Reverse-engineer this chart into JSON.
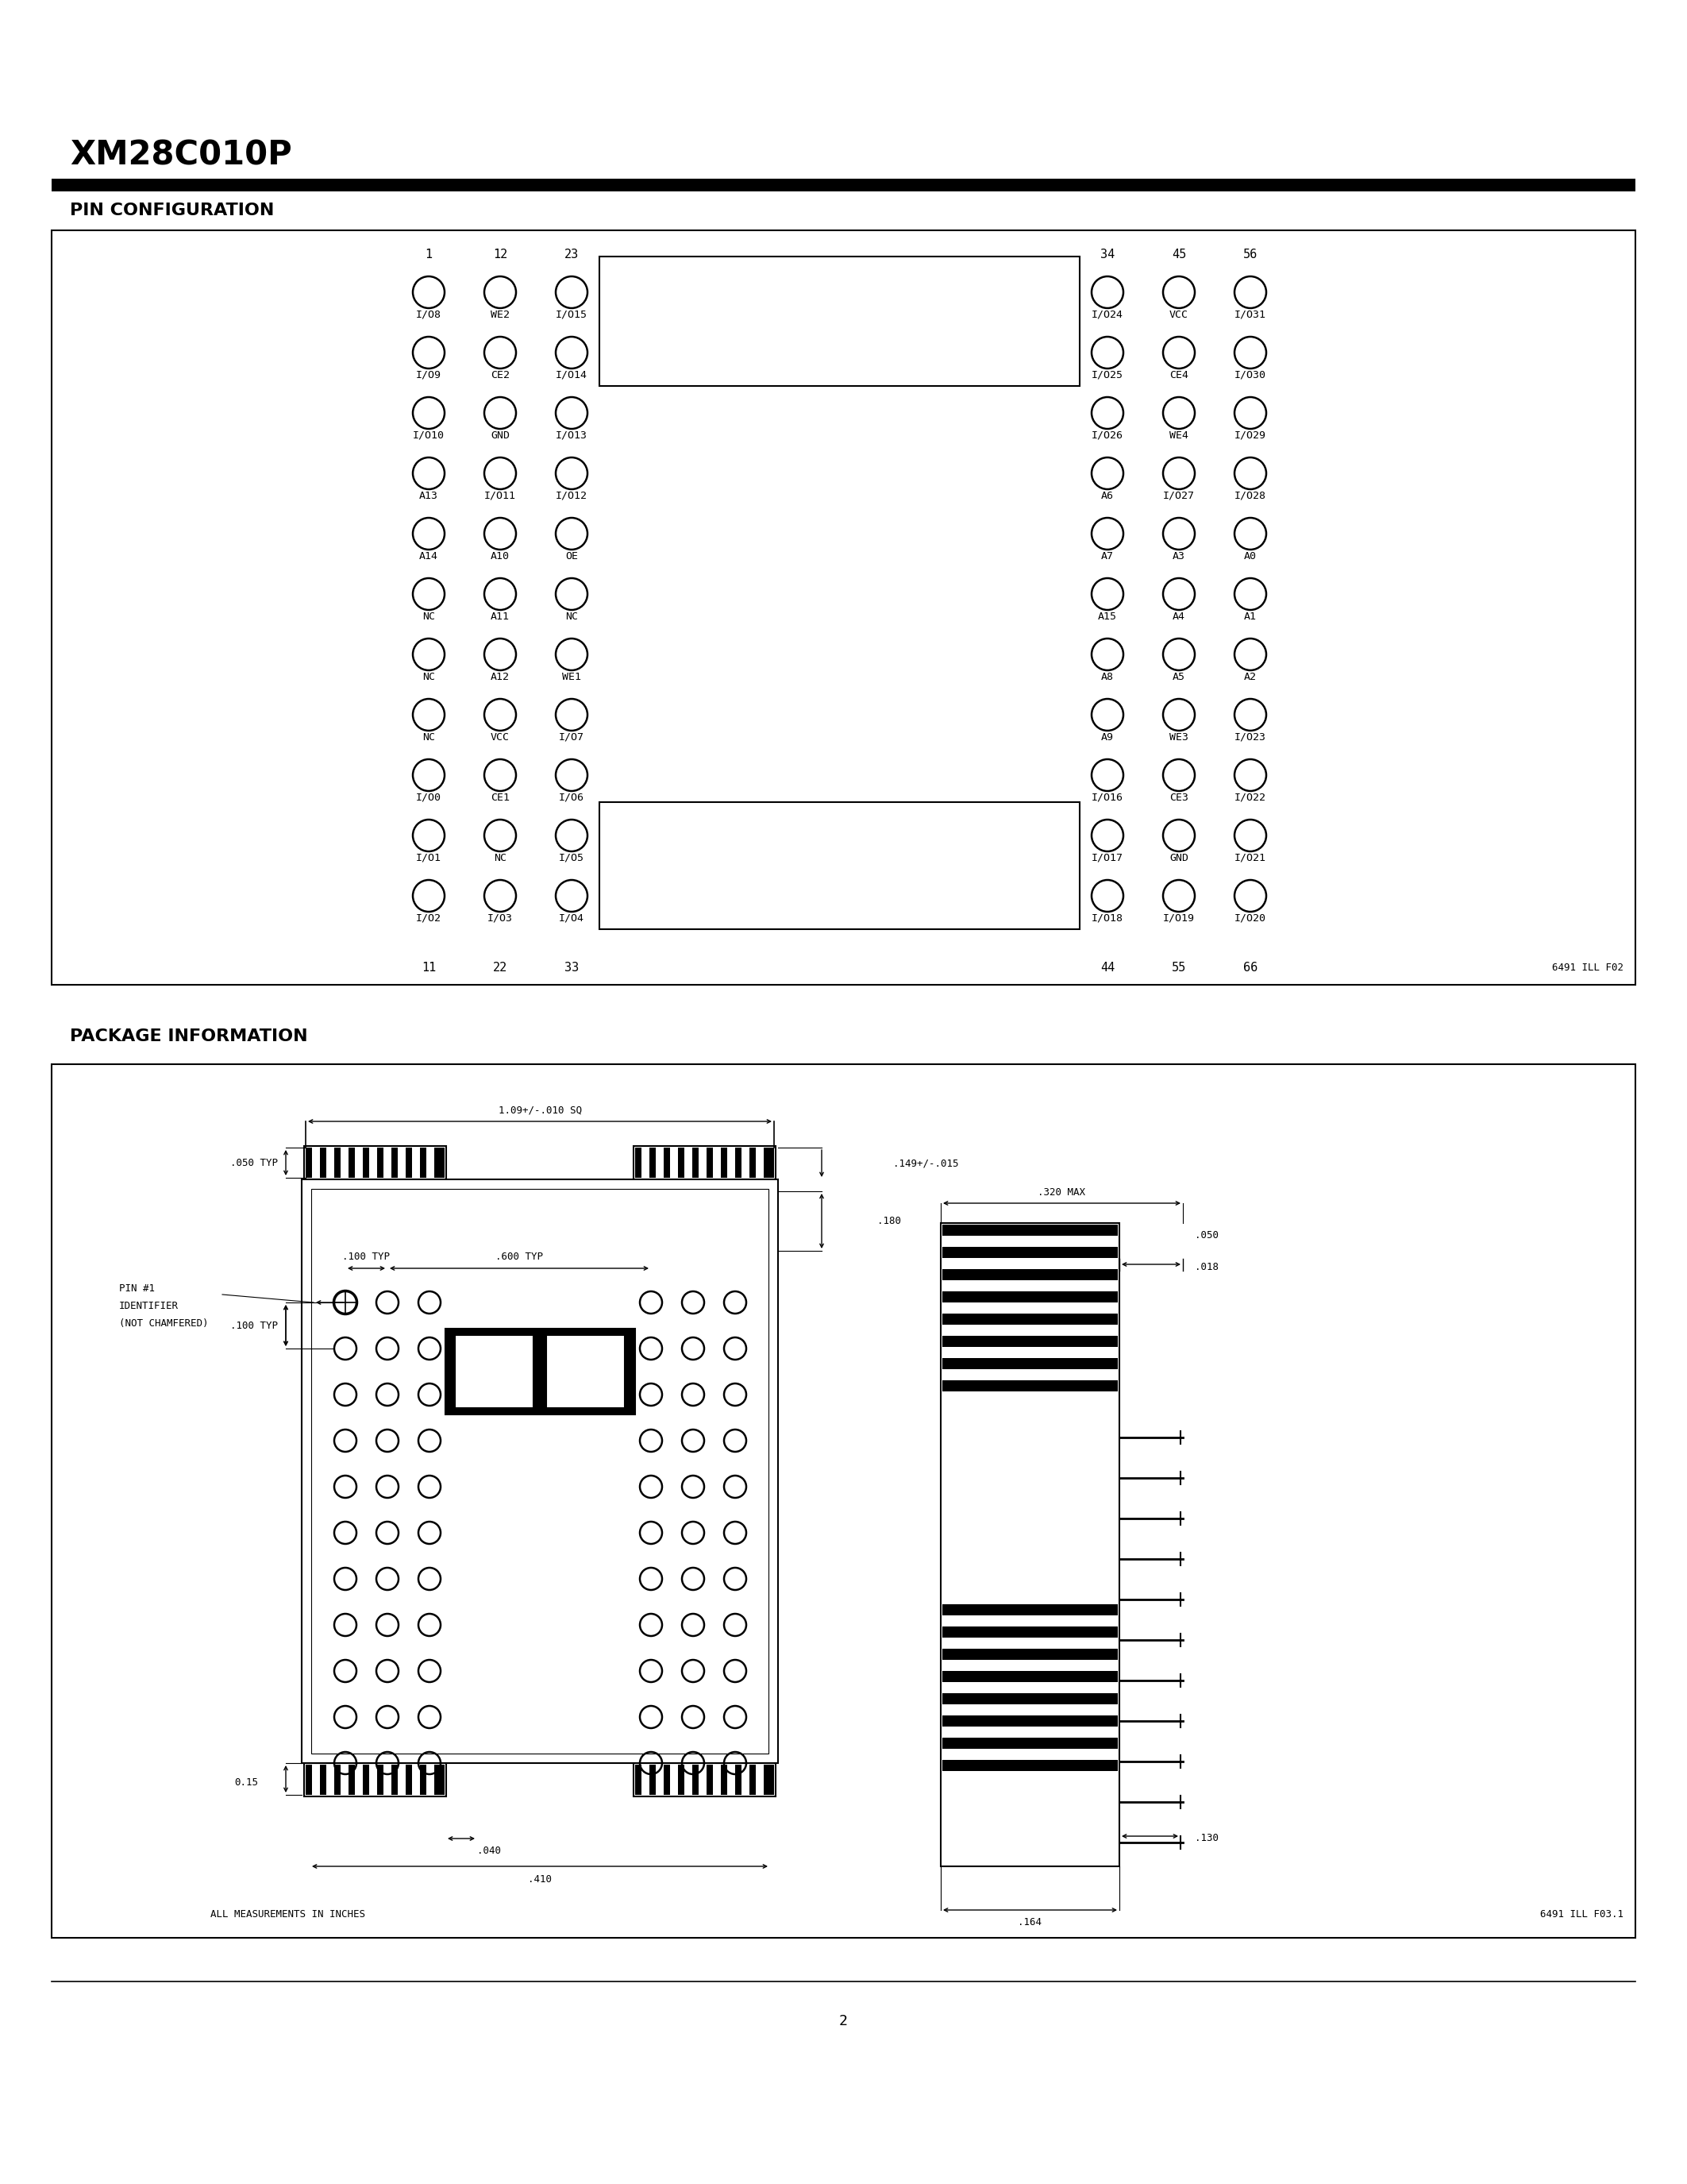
{
  "title": "XM28C010P",
  "section1": "PIN CONFIGURATION",
  "section2": "PACKAGE INFORMATION",
  "page_number": "2",
  "fig_label1": "6491 ILL F02",
  "fig_label2": "6491 ILL F03.1",
  "pin_left_col1": [
    "I/O8",
    "I/O9",
    "I/O10",
    "A13",
    "A14",
    "NC",
    "NC",
    "NC",
    "I/O0",
    "I/O1",
    "I/O2"
  ],
  "pin_left_col2": [
    "WE2",
    "CE2",
    "GND",
    "I/O11",
    "A10",
    "A11",
    "A12",
    "VCC",
    "CE1",
    "NC",
    "I/O3"
  ],
  "pin_left_col3": [
    "I/O15",
    "I/O14",
    "I/O13",
    "I/O12",
    "OE",
    "NC",
    "WE1",
    "I/O7",
    "I/O6",
    "I/O5",
    "I/O4"
  ],
  "pin_right_col1": [
    "I/O24",
    "I/O25",
    "I/O26",
    "A6",
    "A7",
    "A15",
    "A8",
    "A9",
    "I/O16",
    "I/O17",
    "I/O18"
  ],
  "pin_right_col2": [
    "VCC",
    "CE4",
    "WE4",
    "I/O27",
    "A3",
    "A4",
    "A5",
    "WE3",
    "CE3",
    "GND",
    "I/O19"
  ],
  "pin_right_col3": [
    "I/O31",
    "I/O30",
    "I/O29",
    "I/O28",
    "A0",
    "A1",
    "A2",
    "I/O23",
    "I/O22",
    "I/O21",
    "I/O20"
  ],
  "left_top_nums": [
    "1",
    "12",
    "23"
  ],
  "left_bot_nums": [
    "11",
    "22",
    "33"
  ],
  "right_top_nums": [
    "34",
    "45",
    "56"
  ],
  "right_bot_nums": [
    "44",
    "55",
    "66"
  ],
  "pkg_width_label": "1.09+/-.010 SQ",
  "pkg_149": ".149+/-.015",
  "pkg_180": ".180",
  "pkg_050": ".050 TYP",
  "pkg_100a": ".100 TYP",
  "pkg_600": ".600 TYP",
  "pkg_100b": ".100 TYP",
  "pkg_pin1a": "PIN #1",
  "pkg_pin1b": "IDENTIFIER",
  "pkg_pin1c": "(NOT CHAMFERED)",
  "pkg_320": ".320 MAX",
  "pkg_050r": ".050",
  "pkg_018": ".018",
  "pkg_015": "0.15",
  "pkg_040": ".040",
  "pkg_410": ".410",
  "pkg_130": ".130",
  "pkg_164": ".164",
  "all_inches": "ALL MEASUREMENTS IN INCHES"
}
